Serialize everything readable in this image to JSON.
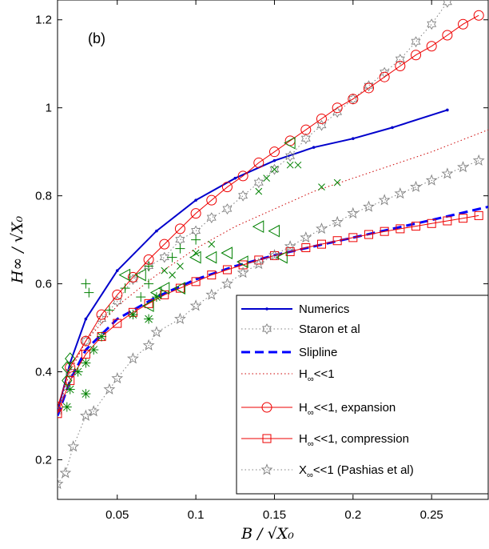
{
  "chart_data": {
    "type": "line",
    "panel_label": "(b)",
    "xlabel": "B / √X₀",
    "ylabel": "H∞ / √X₀",
    "xlim": [
      0.012,
      0.286
    ],
    "ylim": [
      0.11,
      1.245
    ],
    "xticks": [
      0.05,
      0.1,
      0.15,
      0.2,
      0.25
    ],
    "xtick_labels": [
      "0.05",
      "0.1",
      "0.15",
      "0.2",
      "0.25"
    ],
    "yticks": [
      0.2,
      0.4,
      0.6,
      0.8,
      1.0,
      1.2
    ],
    "ytick_labels": [
      "0.2",
      "0.4",
      "0.6",
      "0.8",
      "1",
      "1.2"
    ],
    "grid": false,
    "legend_position": "bottom-right",
    "colors": {
      "numerics": "#0000cc",
      "staron": "#7f7f7f",
      "slipline": "#0000ff",
      "small_h": "#cc0000",
      "expansion": "#ee0000",
      "compression": "#ee0000",
      "pashias": "#7f7f7f",
      "experiments": "#008000"
    },
    "series": [
      {
        "name": "Numerics",
        "style": "solid-dot",
        "x": [
          0.012,
          0.02,
          0.03,
          0.05,
          0.075,
          0.1,
          0.125,
          0.15,
          0.175,
          0.2,
          0.225,
          0.26
        ],
        "y": [
          0.31,
          0.42,
          0.52,
          0.63,
          0.72,
          0.79,
          0.84,
          0.88,
          0.91,
          0.93,
          0.955,
          0.995
        ]
      },
      {
        "name": "Staron et al",
        "style": "dotted-hexagram",
        "x": [
          0.012,
          0.02,
          0.03,
          0.04,
          0.05,
          0.06,
          0.07,
          0.08,
          0.09,
          0.1,
          0.11,
          0.12,
          0.13,
          0.14,
          0.15,
          0.16,
          0.17,
          0.18,
          0.19,
          0.2,
          0.21,
          0.22,
          0.23,
          0.24,
          0.25,
          0.26
        ],
        "y": [
          0.31,
          0.4,
          0.47,
          0.52,
          0.56,
          0.61,
          0.64,
          0.66,
          0.7,
          0.72,
          0.75,
          0.77,
          0.8,
          0.83,
          0.86,
          0.89,
          0.93,
          0.96,
          0.99,
          1.02,
          1.05,
          1.08,
          1.11,
          1.15,
          1.19,
          1.24
        ]
      },
      {
        "name": "Slipline",
        "style": "dashed",
        "x": [
          0.012,
          0.02,
          0.03,
          0.05,
          0.075,
          0.1,
          0.125,
          0.15,
          0.175,
          0.2,
          0.225,
          0.25,
          0.286
        ],
        "y": [
          0.3,
          0.38,
          0.45,
          0.52,
          0.57,
          0.61,
          0.64,
          0.665,
          0.685,
          0.705,
          0.725,
          0.745,
          0.775
        ]
      },
      {
        "name": "H∞<<1",
        "style": "dotted",
        "x": [
          0.012,
          0.02,
          0.03,
          0.05,
          0.075,
          0.1,
          0.125,
          0.15,
          0.175,
          0.2,
          0.225,
          0.25,
          0.286
        ],
        "y": [
          0.31,
          0.4,
          0.47,
          0.55,
          0.62,
          0.68,
          0.73,
          0.77,
          0.81,
          0.84,
          0.87,
          0.9,
          0.95
        ]
      },
      {
        "name": "H∞<<1, expansion",
        "style": "solid-circle",
        "x": [
          0.012,
          0.02,
          0.03,
          0.04,
          0.05,
          0.06,
          0.07,
          0.08,
          0.09,
          0.1,
          0.11,
          0.12,
          0.13,
          0.14,
          0.15,
          0.16,
          0.17,
          0.18,
          0.19,
          0.2,
          0.21,
          0.22,
          0.23,
          0.24,
          0.25,
          0.26,
          0.27,
          0.28
        ],
        "y": [
          0.32,
          0.41,
          0.47,
          0.53,
          0.575,
          0.615,
          0.655,
          0.69,
          0.725,
          0.76,
          0.79,
          0.82,
          0.845,
          0.875,
          0.9,
          0.925,
          0.95,
          0.975,
          1.0,
          1.02,
          1.045,
          1.07,
          1.095,
          1.12,
          1.14,
          1.165,
          1.19,
          1.21
        ]
      },
      {
        "name": "H∞<<1, compression",
        "style": "solid-square",
        "x": [
          0.012,
          0.02,
          0.03,
          0.04,
          0.05,
          0.06,
          0.07,
          0.08,
          0.09,
          0.1,
          0.11,
          0.12,
          0.13,
          0.14,
          0.15,
          0.16,
          0.17,
          0.18,
          0.19,
          0.2,
          0.21,
          0.22,
          0.23,
          0.24,
          0.25,
          0.26,
          0.27,
          0.28
        ],
        "y": [
          0.305,
          0.38,
          0.44,
          0.48,
          0.51,
          0.535,
          0.555,
          0.575,
          0.59,
          0.605,
          0.62,
          0.632,
          0.643,
          0.654,
          0.664,
          0.673,
          0.682,
          0.69,
          0.698,
          0.705,
          0.712,
          0.719,
          0.725,
          0.731,
          0.737,
          0.743,
          0.749,
          0.755
        ]
      },
      {
        "name": "X∞<<1 (Pashias et al)",
        "style": "dotted-pentagram",
        "x": [
          0.012,
          0.017,
          0.022,
          0.03,
          0.035,
          0.045,
          0.05,
          0.06,
          0.07,
          0.075,
          0.09,
          0.1,
          0.11,
          0.12,
          0.13,
          0.14,
          0.15,
          0.16,
          0.17,
          0.18,
          0.19,
          0.2,
          0.21,
          0.22,
          0.23,
          0.24,
          0.25,
          0.26,
          0.27,
          0.28
        ],
        "y": [
          0.145,
          0.17,
          0.23,
          0.3,
          0.31,
          0.36,
          0.385,
          0.43,
          0.46,
          0.49,
          0.52,
          0.55,
          0.575,
          0.6,
          0.625,
          0.645,
          0.665,
          0.685,
          0.705,
          0.725,
          0.74,
          0.76,
          0.775,
          0.79,
          0.805,
          0.82,
          0.835,
          0.85,
          0.865,
          0.88
        ]
      }
    ],
    "experiments": [
      {
        "marker": "diamond",
        "points": [
          [
            0.02,
            0.43
          ],
          [
            0.018,
            0.41
          ],
          [
            0.018,
            0.38
          ]
        ]
      },
      {
        "marker": "asterisk",
        "points": [
          [
            0.018,
            0.32
          ],
          [
            0.02,
            0.36
          ],
          [
            0.025,
            0.4
          ],
          [
            0.03,
            0.35
          ],
          [
            0.03,
            0.42
          ],
          [
            0.035,
            0.45
          ],
          [
            0.04,
            0.48
          ],
          [
            0.06,
            0.53
          ],
          [
            0.07,
            0.52
          ],
          [
            0.075,
            0.57
          ]
        ]
      },
      {
        "marker": "plus",
        "points": [
          [
            0.03,
            0.6
          ],
          [
            0.032,
            0.58
          ],
          [
            0.045,
            0.54
          ],
          [
            0.055,
            0.59
          ],
          [
            0.065,
            0.57
          ],
          [
            0.07,
            0.64
          ],
          [
            0.085,
            0.66
          ],
          [
            0.09,
            0.68
          ],
          [
            0.1,
            0.7
          ],
          [
            0.07,
            0.6
          ]
        ]
      },
      {
        "marker": "cross",
        "points": [
          [
            0.08,
            0.63
          ],
          [
            0.085,
            0.62
          ],
          [
            0.09,
            0.64
          ],
          [
            0.1,
            0.67
          ],
          [
            0.11,
            0.69
          ],
          [
            0.14,
            0.81
          ],
          [
            0.145,
            0.84
          ],
          [
            0.15,
            0.86
          ],
          [
            0.16,
            0.87
          ],
          [
            0.165,
            0.87
          ],
          [
            0.18,
            0.82
          ],
          [
            0.19,
            0.83
          ]
        ]
      },
      {
        "marker": "triangle-left",
        "points": [
          [
            0.055,
            0.62
          ],
          [
            0.065,
            0.62
          ],
          [
            0.07,
            0.55
          ],
          [
            0.075,
            0.58
          ],
          [
            0.08,
            0.59
          ],
          [
            0.09,
            0.59
          ],
          [
            0.1,
            0.66
          ],
          [
            0.11,
            0.66
          ],
          [
            0.12,
            0.67
          ],
          [
            0.13,
            0.65
          ],
          [
            0.155,
            0.66
          ],
          [
            0.14,
            0.73
          ],
          [
            0.15,
            0.72
          ],
          [
            0.16,
            0.92
          ]
        ]
      }
    ]
  },
  "legend": {
    "entries": [
      {
        "label_main": "Numerics",
        "sub": "",
        "label_rest": "",
        "key": "numerics"
      },
      {
        "label_main": "Staron et al",
        "sub": "",
        "label_rest": "",
        "key": "staron"
      },
      {
        "label_main": "Slipline",
        "sub": "",
        "label_rest": "",
        "key": "slipline"
      },
      {
        "label_main": "H",
        "sub": "∞",
        "label_rest": "<<1",
        "key": "small_h"
      },
      {
        "label_main": "H",
        "sub": "∞",
        "label_rest": "<<1, expansion",
        "key": "expansion"
      },
      {
        "label_main": "H",
        "sub": "∞",
        "label_rest": "<<1, compression",
        "key": "compression"
      },
      {
        "label_main": "X",
        "sub": "∞",
        "label_rest": "<<1 (Pashias et al)",
        "key": "pashias"
      }
    ]
  }
}
